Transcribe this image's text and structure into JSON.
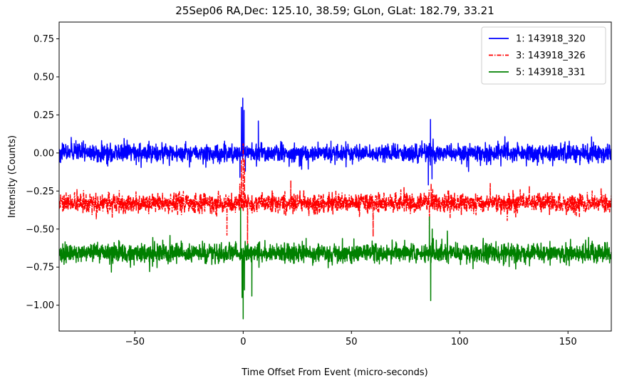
{
  "chart_data": {
    "type": "line",
    "title": "25Sep06 RA,Dec:  125.10,  38.59; GLon, GLat:  182.79,  33.21",
    "xlabel": "Time Offset From Event (micro-seconds)",
    "ylabel": "Intensity (Counts)",
    "xlim": [
      -85,
      170
    ],
    "ylim": [
      -1.17,
      0.86
    ],
    "xticks": [
      -50,
      0,
      50,
      100,
      150
    ],
    "xtick_labels": [
      "−50",
      "0",
      "50",
      "100",
      "150"
    ],
    "yticks": [
      -1.0,
      -0.75,
      -0.5,
      -0.25,
      0.0,
      0.25,
      0.5,
      0.75
    ],
    "ytick_labels": [
      "−1.00",
      "−0.75",
      "−0.50",
      "−0.25",
      "0.00",
      "0.25",
      "0.50",
      "0.75"
    ],
    "legend_position": "top-right",
    "grid": false,
    "series": [
      {
        "name": "1: 143918_320",
        "color": "#0000ff",
        "style": "solid",
        "baseline": 0.0,
        "noise": 0.028,
        "events": [
          {
            "x": -1.5,
            "y": -0.16
          },
          {
            "x": -0.8,
            "y": 0.3
          },
          {
            "x": -0.2,
            "y": 0.36
          },
          {
            "x": 0.4,
            "y": 0.28
          },
          {
            "x": 1.0,
            "y": -0.12
          },
          {
            "x": 7.0,
            "y": 0.21
          },
          {
            "x": 85.5,
            "y": -0.21
          },
          {
            "x": 86.5,
            "y": 0.22
          },
          {
            "x": 87.2,
            "y": -0.17
          }
        ]
      },
      {
        "name": "3: 143918_326",
        "color": "#ff0000",
        "style": "dashdot",
        "baseline": -0.33,
        "noise": 0.03,
        "events": [
          {
            "x": -7.5,
            "y": -0.54
          },
          {
            "x": -0.8,
            "y": -0.05
          },
          {
            "x": 0.0,
            "y": 0.06
          },
          {
            "x": 0.6,
            "y": -0.04
          },
          {
            "x": 2.0,
            "y": -0.6
          },
          {
            "x": 22.0,
            "y": -0.18
          },
          {
            "x": 60.0,
            "y": -0.55
          },
          {
            "x": 86.0,
            "y": -0.53
          },
          {
            "x": 86.8,
            "y": -0.2
          }
        ]
      },
      {
        "name": "5: 143918_331",
        "color": "#008000",
        "style": "solid",
        "baseline": -0.66,
        "noise": 0.03,
        "events": [
          {
            "x": -1.2,
            "y": -0.36
          },
          {
            "x": -0.5,
            "y": -0.95
          },
          {
            "x": 0.0,
            "y": -1.09
          },
          {
            "x": 0.6,
            "y": -0.9
          },
          {
            "x": 4.0,
            "y": -0.94
          },
          {
            "x": 86.0,
            "y": -0.42
          },
          {
            "x": 86.6,
            "y": -0.97
          },
          {
            "x": 87.3,
            "y": -0.5
          }
        ]
      }
    ]
  }
}
